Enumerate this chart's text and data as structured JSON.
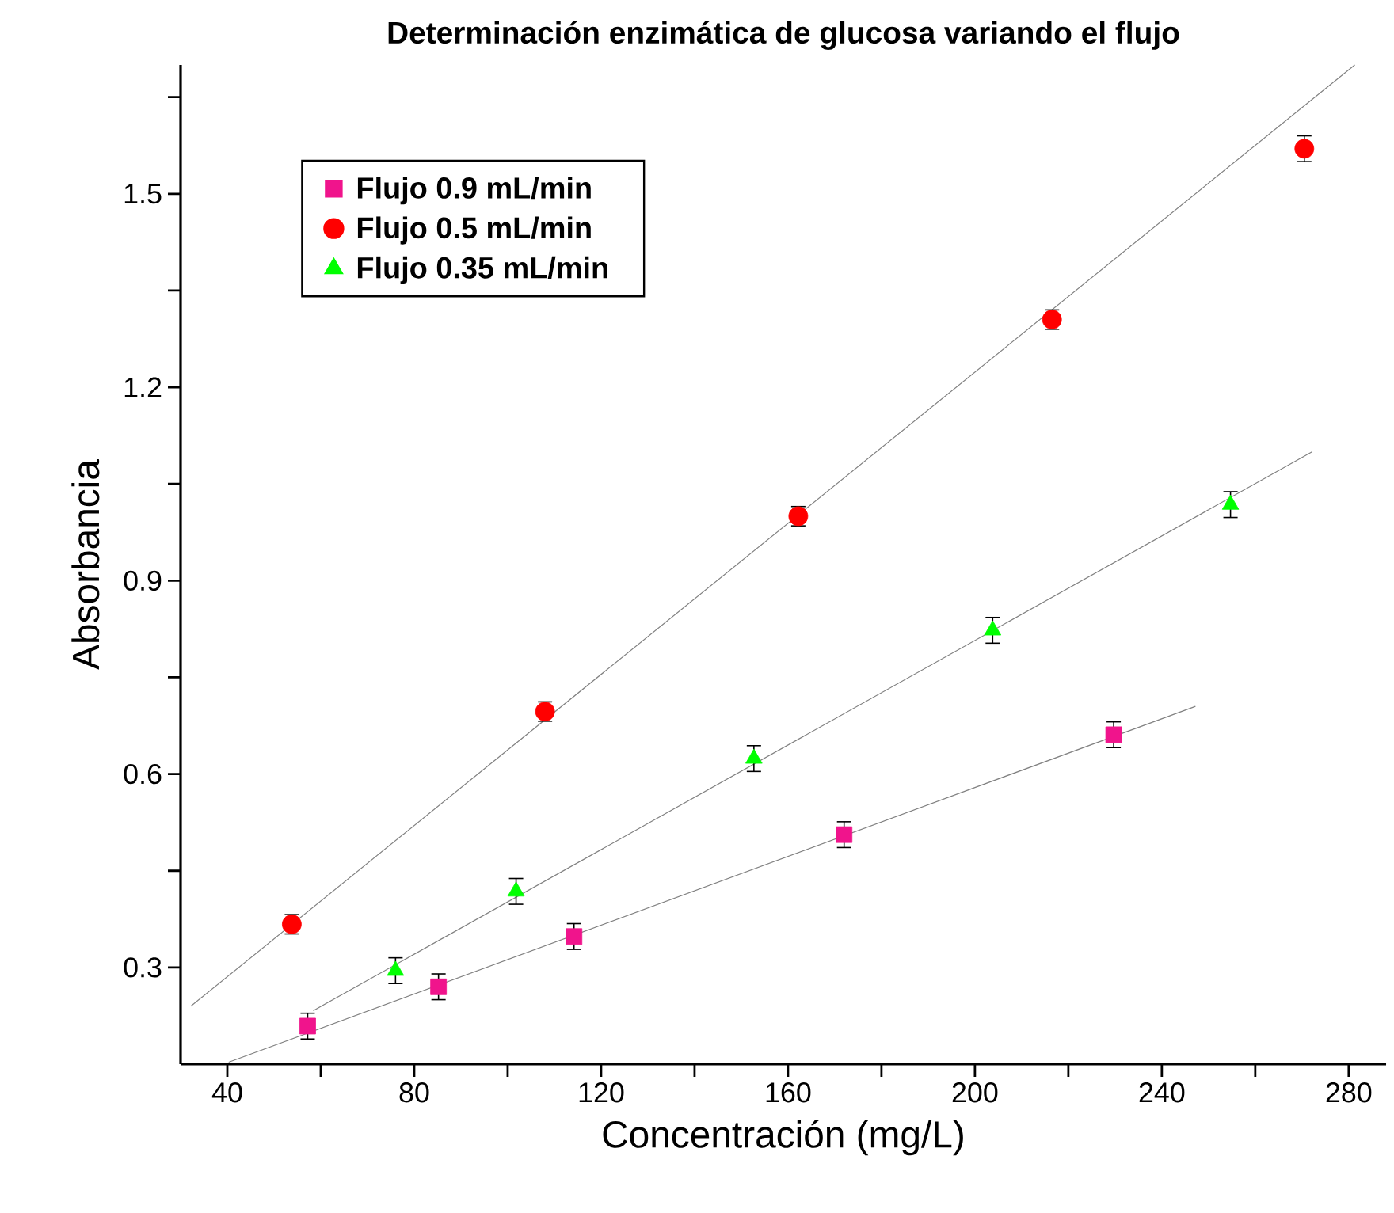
{
  "chart_data": {
    "type": "scatter",
    "title": "Determinación enzimática de glucosa variando el flujo",
    "xlabel": "Concentración (mg/L)",
    "ylabel": "Absorbancia",
    "xlim": [
      30,
      288
    ],
    "ylim": [
      0.15,
      1.7
    ],
    "xticks": [
      40,
      {
        "value": 60,
        "label": null
      },
      80,
      {
        "value": 100,
        "label": null
      },
      120,
      {
        "value": 140,
        "label": null
      },
      160,
      {
        "value": 180,
        "label": null
      },
      200,
      {
        "value": 220,
        "label": null
      },
      240,
      {
        "value": 260,
        "label": null
      },
      280
    ],
    "yticks": [
      0.3,
      {
        "value": 0.45,
        "label": null
      },
      0.6,
      {
        "value": 0.75,
        "label": null
      },
      0.9,
      {
        "value": 1.05,
        "label": null
      },
      1.2,
      {
        "value": 1.35,
        "label": null
      },
      1.5,
      {
        "value": 1.65,
        "label": null
      }
    ],
    "legend": "top left",
    "grid": false,
    "series": [
      {
        "name": "Flujo 0.9 mL/min",
        "color": "#f0148c",
        "marker": "square",
        "x": [
          57.2,
          85.2,
          114.2,
          172.0,
          229.7
        ],
        "values": [
          0.209,
          0.27,
          0.348,
          0.506,
          0.661
        ],
        "errors": [
          0.02,
          0.02,
          0.02,
          0.02,
          0.02
        ]
      },
      {
        "name": "Flujo 0.5 mL/min",
        "color": "#ff0000",
        "marker": "circle",
        "x": [
          53.8,
          108.0,
          162.2,
          216.5,
          270.5
        ],
        "values": [
          0.367,
          0.697,
          1.0,
          1.305,
          1.57
        ],
        "errors": [
          0.015,
          0.015,
          0.015,
          0.015,
          0.02
        ]
      },
      {
        "name": "Flujo 0.35 mL/min",
        "color": "#00ff00",
        "marker": "triangle",
        "x": [
          76.0,
          101.8,
          152.7,
          203.8,
          254.7
        ],
        "values": [
          0.295,
          0.418,
          0.624,
          0.823,
          1.018
        ],
        "errors": [
          0.02,
          0.02,
          0.02,
          0.02,
          0.02
        ]
      },
      {
        "type": "line",
        "color": "#808080",
        "marker": "none",
        "x": [
          40.3,
          247.2
        ],
        "values": [
          0.153,
          0.705
        ]
      },
      {
        "type": "line",
        "color": "#808080",
        "marker": "none",
        "x": [
          32.2,
          281.3
        ],
        "values": [
          0.24,
          1.7
        ]
      },
      {
        "type": "line",
        "color": "#808080",
        "marker": "none",
        "x": [
          58.4,
          272.2
        ],
        "values": [
          0.233,
          1.1
        ]
      }
    ]
  }
}
